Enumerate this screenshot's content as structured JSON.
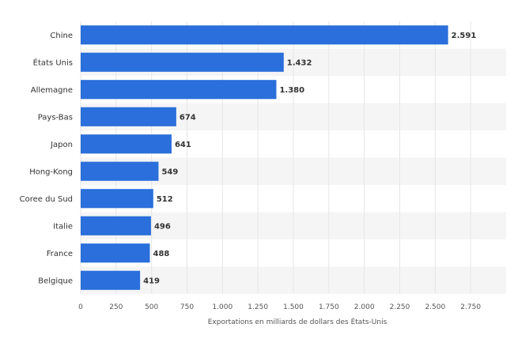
{
  "chart_data": {
    "type": "bar",
    "orientation": "horizontal",
    "categories": [
      "Chine",
      "États Unis",
      "Allemagne",
      "Pays-Bas",
      "Japon",
      "Hong-Kong",
      "Coree du Sud",
      "Italie",
      "France",
      "Belgique"
    ],
    "values": [
      2591,
      1432,
      1380,
      674,
      641,
      549,
      512,
      496,
      488,
      419
    ],
    "value_labels": [
      "2.591",
      "1.432",
      "1.380",
      "674",
      "641",
      "549",
      "512",
      "496",
      "488",
      "419"
    ],
    "title": "",
    "xlabel": "Exportations en milliards de dollars des États-Unis",
    "ylabel": "",
    "xlim": [
      0,
      3000
    ],
    "x_ticks": [
      0,
      250,
      500,
      750,
      1000,
      1250,
      1500,
      1750,
      2000,
      2250,
      2500,
      2750
    ],
    "x_tick_labels": [
      "0",
      "250",
      "500",
      "750",
      "1.000",
      "1.250",
      "1.500",
      "1.750",
      "2.000",
      "2.250",
      "2.500",
      "2.750"
    ],
    "bar_color": "#2a6fdb",
    "band_color": "#f5f5f5",
    "grid": true,
    "legend": "none"
  }
}
